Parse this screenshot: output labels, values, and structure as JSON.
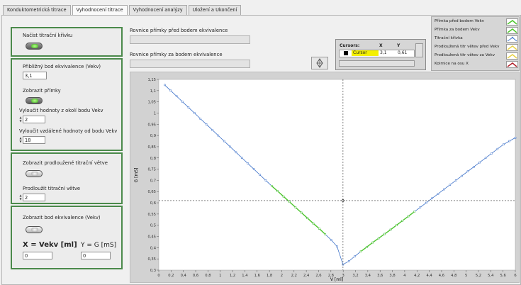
{
  "tabs": [
    {
      "label": "Konduktometrická titrace",
      "active": false
    },
    {
      "label": "Vyhodnocení titrace",
      "active": true
    },
    {
      "label": "Vyhodnocení analýzy",
      "active": false
    },
    {
      "label": "Uložení a Ukončení",
      "active": false
    }
  ],
  "left": {
    "load_curve_label": "Načíst titrační křivku",
    "approx_eq_label": "Přibližný bod ekvivalence (Vekv)",
    "approx_eq_value": "3,1",
    "show_lines_label": "Zobrazit přímky",
    "exclude_near_label": "Vyloučit hodnoty z okolí bodu Vekv",
    "exclude_near_value": "2",
    "exclude_far_label": "Vyloučit vzdálené hodnoty od bodu Vekv",
    "exclude_far_value": "18",
    "show_extended_label": "Zobrazit prodloužené titrační větve",
    "extend_label": "Prodloužit titrační větve",
    "extend_value": "2",
    "show_eq_point_label": "Zobrazit bod ekvivalence (Vekv)",
    "x_label": "X = Vekv [ml]",
    "y_label": "Y = G [mS]",
    "x_value": "0",
    "y_value": "0"
  },
  "equations": {
    "before_label": "Rovnice přímky před bodem ekvivalence",
    "after_label": "Rovnice přímky za bodem ekvivalence",
    "before_value": "",
    "after_value": ""
  },
  "cursor_table": {
    "header_name": "Cursors:",
    "header_x": "X",
    "header_y": "Y",
    "name": "Cursor",
    "x": "3,1",
    "y": "0,61"
  },
  "legend": [
    {
      "label": "Přímka před bodem Vekv",
      "color": "#4ec62e"
    },
    {
      "label": "Přímka za bodem Vekv",
      "color": "#4ec62e"
    },
    {
      "label": "Titrační křivka",
      "color": "#3a6fc8"
    },
    {
      "label": "Prodloužená titr větev před Vekv",
      "color": "#e8d24a"
    },
    {
      "label": "Prodloužená titr větev za Vekv",
      "color": "#e8d24a"
    },
    {
      "label": "Kolmice na osu X",
      "color": "#b0202a"
    }
  ],
  "chart_data": {
    "type": "line",
    "xlabel": "V [ml]",
    "ylabel": "G [mS]",
    "xlim": [
      0,
      6
    ],
    "ylim": [
      0.3,
      1.15
    ],
    "x_ticks": [
      "0",
      "0,2",
      "0,4",
      "0,6",
      "0,8",
      "1",
      "1,2",
      "1,4",
      "1,6",
      "1,8",
      "2",
      "2,2",
      "2,4",
      "2,6",
      "2,8",
      "3",
      "3,2",
      "3,4",
      "3,6",
      "3,8",
      "4",
      "4,2",
      "4,4",
      "4,6",
      "4,8",
      "5",
      "5,2",
      "5,4",
      "5,6",
      "6"
    ],
    "y_ticks": [
      "0,3",
      "0,35",
      "0,4",
      "0,45",
      "0,5",
      "0,55",
      "0,6",
      "0,65",
      "0,7",
      "0,75",
      "0,8",
      "0,85",
      "0,9",
      "0,95",
      "1",
      "1,05",
      "1,1",
      "1,15"
    ],
    "series": [
      {
        "name": "Titrační křivka",
        "color": "#3a6fc8",
        "x": [
          0.1,
          0.2,
          0.3,
          0.4,
          0.5,
          0.6,
          0.7,
          0.8,
          0.9,
          1.0,
          1.1,
          1.2,
          1.3,
          1.4,
          1.5,
          1.6,
          1.7,
          1.8,
          1.9,
          2.0,
          2.1,
          2.2,
          2.3,
          2.4,
          2.5,
          2.6,
          2.7,
          2.8,
          2.9,
          3.0,
          3.1,
          3.2,
          3.3,
          3.4,
          3.5,
          3.6,
          3.7,
          3.8,
          3.9,
          4.0,
          4.1,
          4.2,
          4.3,
          4.4,
          4.5,
          4.6,
          4.7,
          4.8,
          4.9,
          5.0,
          5.1,
          5.2,
          5.3,
          5.4,
          5.5,
          5.6,
          5.7,
          5.8,
          5.9,
          6.0
        ],
        "y": [
          1.125,
          1.1,
          1.075,
          1.05,
          1.025,
          1.0,
          0.975,
          0.95,
          0.925,
          0.9,
          0.875,
          0.85,
          0.825,
          0.8,
          0.775,
          0.75,
          0.725,
          0.7,
          0.675,
          0.652,
          0.628,
          0.604,
          0.58,
          0.556,
          0.532,
          0.508,
          0.485,
          0.46,
          0.435,
          0.405,
          0.325,
          0.34,
          0.362,
          0.383,
          0.403,
          0.423,
          0.442,
          0.461,
          0.48,
          0.5,
          0.52,
          0.54,
          0.56,
          0.58,
          0.6,
          0.62,
          0.64,
          0.66,
          0.68,
          0.7,
          0.72,
          0.74,
          0.76,
          0.78,
          0.8,
          0.82,
          0.84,
          0.86,
          0.875,
          0.89
        ]
      },
      {
        "name": "Přímka před bodem Vekv",
        "color": "#4ec62e",
        "x": [
          1.9,
          2.0,
          2.1,
          2.2,
          2.3,
          2.4,
          2.5,
          2.6,
          2.7,
          2.8
        ],
        "y": [
          0.675,
          0.652,
          0.628,
          0.604,
          0.58,
          0.556,
          0.532,
          0.508,
          0.485,
          0.46
        ]
      },
      {
        "name": "Přímka za bodem Vekv",
        "color": "#4ec62e",
        "x": [
          3.4,
          3.5,
          3.6,
          3.7,
          3.8,
          3.9,
          4.0,
          4.1,
          4.2,
          4.3
        ],
        "y": [
          0.383,
          0.403,
          0.423,
          0.442,
          0.461,
          0.48,
          0.5,
          0.52,
          0.54,
          0.56
        ]
      }
    ],
    "cursor": {
      "x": 3.1,
      "y": 0.61
    }
  }
}
